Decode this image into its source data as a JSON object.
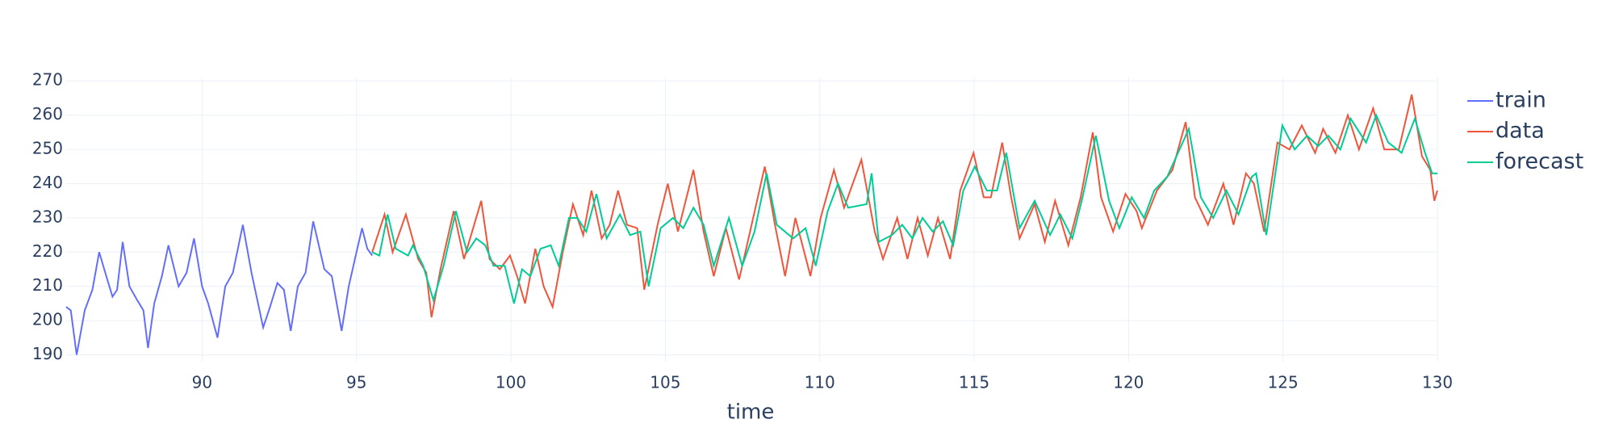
{
  "chart_data": {
    "type": "line",
    "x_label": "time",
    "xlim": [
      85.6,
      130
    ],
    "ylim": [
      188,
      271
    ],
    "xticks": [
      90,
      95,
      100,
      105,
      110,
      115,
      120,
      125,
      130
    ],
    "yticks": [
      190,
      200,
      210,
      220,
      230,
      240,
      250,
      260,
      270
    ],
    "grid": true,
    "legend": "right",
    "series": [
      {
        "name": "train",
        "color": "#636efa",
        "x": [
          85.6,
          85.75,
          85.94,
          86.2,
          86.45,
          86.67,
          86.9,
          87.1,
          87.25,
          87.43,
          87.65,
          87.9,
          88.1,
          88.25,
          88.45,
          88.7,
          88.91,
          89.24,
          89.5,
          89.74,
          90.0,
          90.2,
          90.5,
          90.75,
          91.0,
          91.32,
          91.6,
          91.98,
          92.2,
          92.44,
          92.65,
          92.87,
          93.1,
          93.35,
          93.6,
          93.96,
          94.2,
          94.52,
          94.75,
          95.0,
          95.18,
          95.35,
          95.51
        ],
        "values": [
          204,
          203,
          190,
          203,
          209,
          220,
          213,
          207,
          209,
          223,
          210,
          206,
          203,
          192,
          205,
          213,
          222,
          210,
          214,
          224,
          210,
          205,
          195,
          210,
          214,
          228,
          214,
          198,
          204,
          211,
          209,
          197,
          210,
          214,
          229,
          215,
          213,
          197,
          210,
          220,
          227,
          221,
          219
        ]
      },
      {
        "name": "data",
        "color": "#EF553B",
        "x": [
          95.51,
          95.91,
          96.17,
          96.6,
          97.0,
          97.26,
          97.43,
          97.72,
          98.15,
          98.48,
          99.04,
          99.31,
          99.64,
          99.97,
          100.2,
          100.46,
          100.79,
          101.06,
          101.35,
          101.68,
          102.01,
          102.34,
          102.61,
          102.94,
          103.2,
          103.47,
          103.76,
          104.09,
          104.32,
          104.75,
          105.08,
          105.41,
          105.91,
          106.24,
          106.57,
          106.96,
          107.39,
          107.72,
          108.22,
          108.55,
          108.88,
          109.21,
          109.7,
          110.03,
          110.46,
          110.79,
          111.35,
          111.78,
          112.05,
          112.51,
          112.84,
          113.17,
          113.5,
          113.83,
          114.22,
          114.55,
          114.98,
          115.31,
          115.54,
          115.91,
          116.2,
          116.47,
          116.96,
          117.29,
          117.62,
          118.05,
          118.45,
          118.84,
          119.11,
          119.5,
          119.9,
          120.26,
          120.43,
          120.92,
          121.42,
          121.85,
          122.15,
          122.57,
          123.07,
          123.4,
          123.8,
          124.06,
          124.39,
          124.82,
          125.21,
          125.61,
          126.04,
          126.3,
          126.7,
          127.1,
          127.46,
          127.92,
          128.28,
          128.75,
          129.17,
          129.5,
          129.77,
          129.9,
          130.0
        ],
        "values": [
          220,
          231,
          220,
          231,
          218,
          214,
          201,
          215,
          232,
          218,
          235,
          218,
          215,
          219,
          213,
          205,
          221,
          210,
          204,
          220,
          234,
          225,
          238,
          224,
          228,
          238,
          228,
          227,
          209,
          228,
          240,
          226,
          244,
          226,
          213,
          227,
          212,
          225,
          245,
          228,
          213,
          230,
          213,
          230,
          244,
          233,
          247,
          226,
          218,
          230,
          218,
          230,
          219,
          230,
          218,
          238,
          249,
          236,
          236,
          252,
          236,
          224,
          234,
          223,
          235,
          222,
          236,
          255,
          236,
          226,
          237,
          232,
          227,
          238,
          244,
          258,
          236,
          228,
          240,
          228,
          243,
          240,
          226,
          252,
          250,
          257,
          249,
          256,
          249,
          260,
          250,
          262,
          250,
          250,
          266,
          248,
          244,
          235,
          238
        ]
      },
      {
        "name": "forecast",
        "color": "#00cc96",
        "x": [
          95.51,
          95.74,
          96.01,
          96.27,
          96.67,
          96.83,
          97.16,
          97.49,
          97.82,
          98.22,
          98.58,
          98.88,
          99.17,
          99.44,
          99.8,
          100.1,
          100.36,
          100.63,
          100.96,
          101.29,
          101.55,
          101.88,
          102.15,
          102.44,
          102.77,
          103.1,
          103.53,
          103.86,
          104.19,
          104.46,
          104.85,
          105.25,
          105.58,
          105.91,
          106.24,
          106.57,
          107.06,
          107.49,
          107.89,
          108.28,
          108.61,
          109.14,
          109.54,
          109.87,
          110.26,
          110.59,
          110.92,
          111.52,
          111.68,
          111.91,
          112.34,
          112.67,
          113.0,
          113.33,
          113.66,
          113.99,
          114.32,
          114.65,
          115.02,
          115.41,
          115.74,
          116.04,
          116.47,
          116.96,
          117.46,
          117.79,
          118.18,
          118.51,
          118.94,
          119.37,
          119.7,
          120.1,
          120.5,
          120.83,
          121.25,
          121.95,
          122.34,
          122.74,
          123.17,
          123.56,
          123.99,
          124.13,
          124.46,
          124.98,
          125.38,
          125.78,
          126.14,
          126.47,
          126.86,
          127.19,
          127.69,
          128.02,
          128.41,
          128.84,
          129.27,
          129.6,
          129.83,
          130.0
        ],
        "values": [
          220,
          219,
          231,
          221,
          219,
          222,
          216,
          206,
          216,
          232,
          220,
          224,
          222,
          216,
          216,
          205,
          215,
          213,
          221,
          222,
          216,
          230,
          230,
          226,
          237,
          224,
          231,
          225,
          226,
          210,
          227,
          230,
          227,
          233,
          228,
          216,
          230,
          216,
          226,
          243,
          228,
          224,
          227,
          216,
          232,
          240,
          233,
          234,
          243,
          223,
          225,
          228,
          224,
          230,
          226,
          229,
          222,
          238,
          245,
          238,
          238,
          249,
          227,
          235,
          225,
          231,
          224,
          236,
          254,
          235,
          227,
          236,
          230,
          238,
          242,
          256,
          236,
          230,
          238,
          231,
          242,
          243,
          225,
          257,
          250,
          254,
          251,
          254,
          250,
          259,
          252,
          260,
          252,
          249,
          259,
          249,
          243,
          243
        ]
      }
    ]
  }
}
